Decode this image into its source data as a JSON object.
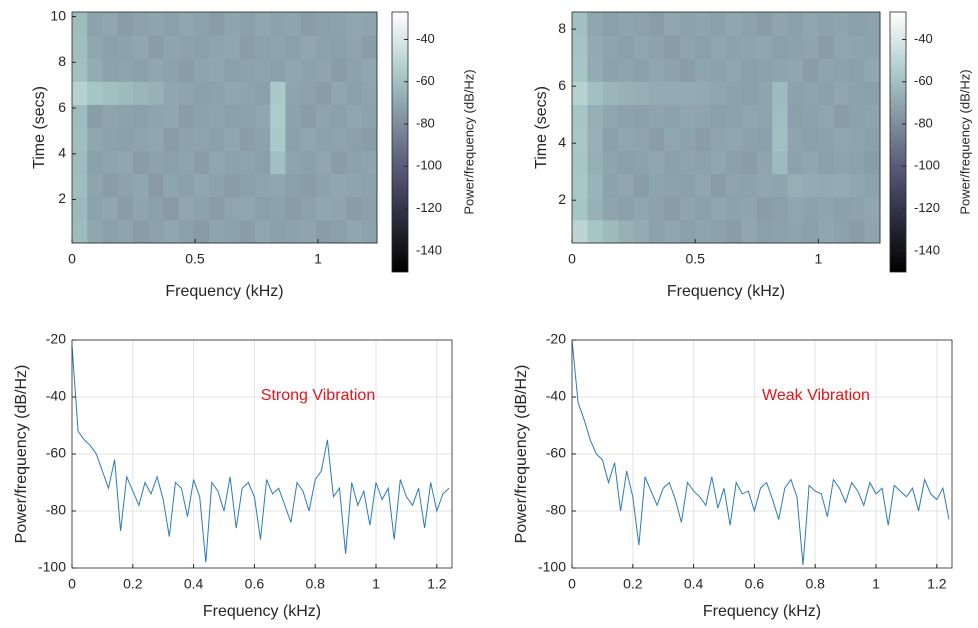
{
  "chart_data": [
    {
      "type": "heatmap",
      "xlabel": "Frequency (kHz)",
      "ylabel": "Time (secs)",
      "colorbar_label": "Power/frequency (dB/Hz)",
      "xlim": [
        0,
        1.24
      ],
      "ylim": [
        0.1,
        10.2
      ],
      "xticks": [
        0,
        0.5,
        1
      ],
      "yticks": [
        2,
        4,
        6,
        8,
        10
      ],
      "colormap": "bone",
      "clim": [
        -150,
        -27
      ],
      "cticks": [
        -140,
        -120,
        -100,
        -80,
        -60,
        -40
      ],
      "z": [
        [
          -62,
          -70,
          -73,
          -71,
          -74,
          -72,
          -70,
          -73,
          -75,
          -71,
          -72,
          -74,
          -70,
          -73,
          -72,
          -71,
          -74,
          -73,
          -70,
          -72
        ],
        [
          -63,
          -72,
          -70,
          -74,
          -71,
          -73,
          -75,
          -70,
          -72,
          -74,
          -71,
          -70,
          -73,
          -72,
          -74,
          -72,
          -70,
          -71,
          -74,
          -73
        ],
        [
          -61,
          -71,
          -74,
          -72,
          -70,
          -75,
          -71,
          -73,
          -70,
          -72,
          -74,
          -73,
          -71,
          -70,
          -73,
          -74,
          -72,
          -70,
          -71,
          -72
        ],
        [
          -62,
          -73,
          -71,
          -70,
          -74,
          -72,
          -73,
          -71,
          -74,
          -70,
          -72,
          -71,
          -73,
          -60,
          -71,
          -73,
          -70,
          -74,
          -72,
          -71
        ],
        [
          -61,
          -70,
          -72,
          -73,
          -71,
          -70,
          -74,
          -72,
          -71,
          -73,
          -70,
          -74,
          -72,
          -56,
          -73,
          -70,
          -72,
          -71,
          -73,
          -74
        ],
        [
          -62,
          -74,
          -71,
          -72,
          -73,
          -71,
          -70,
          -74,
          -72,
          -71,
          -73,
          -72,
          -70,
          -55,
          -72,
          -74,
          -71,
          -73,
          -70,
          -72
        ],
        [
          -52,
          -58,
          -60,
          -62,
          -64,
          -66,
          -70,
          -71,
          -73,
          -72,
          -70,
          -71,
          -73,
          -56,
          -71,
          -72,
          -74,
          -70,
          -73,
          -71
        ],
        [
          -60,
          -68,
          -72,
          -71,
          -73,
          -70,
          -72,
          -74,
          -71,
          -70,
          -73,
          -72,
          -71,
          -73,
          -70,
          -72,
          -71,
          -74,
          -72,
          -70
        ],
        [
          -61,
          -70,
          -73,
          -72,
          -70,
          -74,
          -71,
          -72,
          -73,
          -71,
          -70,
          -74,
          -72,
          -71,
          -73,
          -70,
          -72,
          -73,
          -71,
          -74
        ],
        [
          -62,
          -72,
          -70,
          -74,
          -72,
          -71,
          -73,
          -70,
          -72,
          -74,
          -71,
          -73,
          -70,
          -72,
          -71,
          -74,
          -73,
          -72,
          -70,
          -71
        ]
      ]
    },
    {
      "type": "heatmap",
      "xlabel": "Frequency (kHz)",
      "ylabel": "Time (secs)",
      "colorbar_label": "Power/frequency (dB/Hz)",
      "xlim": [
        0,
        1.25
      ],
      "ylim": [
        0.5,
        8.6
      ],
      "xticks": [
        0,
        0.5,
        1
      ],
      "yticks": [
        2,
        4,
        6,
        8
      ],
      "colormap": "bone",
      "clim": [
        -150,
        -27
      ],
      "cticks": [
        -140,
        -120,
        -100,
        -80,
        -60,
        -40
      ],
      "z": [
        [
          -50,
          -58,
          -62,
          -66,
          -68,
          -72,
          -70,
          -73,
          -71,
          -72,
          -74,
          -70,
          -73,
          -72,
          -71,
          -73,
          -70,
          -72,
          -74,
          -71
        ],
        [
          -58,
          -66,
          -71,
          -73,
          -70,
          -72,
          -74,
          -71,
          -73,
          -70,
          -72,
          -71,
          -74,
          -73,
          -70,
          -72,
          -71,
          -73,
          -72,
          -70
        ],
        [
          -57,
          -65,
          -72,
          -70,
          -74,
          -71,
          -72,
          -73,
          -70,
          -74,
          -71,
          -72,
          -70,
          -71,
          -67,
          -68,
          -69,
          -68,
          -70,
          -72
        ],
        [
          -58,
          -67,
          -71,
          -73,
          -72,
          -70,
          -73,
          -71,
          -72,
          -70,
          -73,
          -74,
          -71,
          -62,
          -72,
          -70,
          -73,
          -71,
          -72,
          -74
        ],
        [
          -57,
          -66,
          -73,
          -70,
          -71,
          -74,
          -70,
          -72,
          -74,
          -71,
          -70,
          -72,
          -73,
          -60,
          -71,
          -73,
          -72,
          -70,
          -71,
          -73
        ],
        [
          -58,
          -67,
          -70,
          -72,
          -73,
          -71,
          -72,
          -70,
          -71,
          -73,
          -72,
          -70,
          -71,
          -61,
          -73,
          -72,
          -70,
          -74,
          -72,
          -71
        ],
        [
          -52,
          -60,
          -64,
          -66,
          -67,
          -68,
          -68,
          -68,
          -69,
          -70,
          -72,
          -73,
          -71,
          -62,
          -72,
          -71,
          -73,
          -70,
          -72,
          -73
        ],
        [
          -58,
          -68,
          -72,
          -71,
          -73,
          -70,
          -72,
          -74,
          -71,
          -72,
          -70,
          -73,
          -72,
          -71,
          -70,
          -74,
          -71,
          -72,
          -73,
          -70
        ],
        [
          -59,
          -69,
          -71,
          -73,
          -70,
          -72,
          -74,
          -71,
          -73,
          -70,
          -72,
          -71,
          -70,
          -73,
          -72,
          -71,
          -74,
          -70,
          -71,
          -72
        ],
        [
          -60,
          -70,
          -73,
          -71,
          -72,
          -74,
          -70,
          -72,
          -71,
          -73,
          -70,
          -72,
          -74,
          -71,
          -73,
          -70,
          -72,
          -71,
          -73,
          -72
        ]
      ]
    },
    {
      "type": "line",
      "xlabel": "Frequency (kHz)",
      "ylabel": "Power/frequency (dB/Hz)",
      "annotation": "Strong Vibration",
      "annotation_color": "#e3141c",
      "color": "#2b7bb9",
      "grid": true,
      "xlim": [
        0,
        1.25
      ],
      "ylim": [
        -100,
        -20
      ],
      "xticks": [
        0,
        0.2,
        0.4,
        0.6,
        0.8,
        1,
        1.2
      ],
      "yticks": [
        -100,
        -80,
        -60,
        -40,
        -20
      ],
      "x": [
        0,
        0.02,
        0.04,
        0.06,
        0.08,
        0.1,
        0.12,
        0.14,
        0.16,
        0.18,
        0.2,
        0.22,
        0.24,
        0.26,
        0.28,
        0.3,
        0.32,
        0.34,
        0.36,
        0.38,
        0.4,
        0.42,
        0.44,
        0.46,
        0.48,
        0.5,
        0.52,
        0.54,
        0.56,
        0.58,
        0.6,
        0.62,
        0.64,
        0.66,
        0.68,
        0.7,
        0.72,
        0.74,
        0.76,
        0.78,
        0.8,
        0.82,
        0.84,
        0.86,
        0.88,
        0.9,
        0.92,
        0.94,
        0.96,
        0.98,
        1,
        1.02,
        1.04,
        1.06,
        1.08,
        1.1,
        1.12,
        1.14,
        1.16,
        1.18,
        1.2,
        1.22,
        1.24
      ],
      "values": [
        -22,
        -52,
        -55,
        -57,
        -60,
        -66,
        -72,
        -62,
        -87,
        -68,
        -73,
        -78,
        -70,
        -74,
        -68,
        -76,
        -89,
        -70,
        -72,
        -82,
        -69,
        -75,
        -98,
        -70,
        -73,
        -80,
        -68,
        -86,
        -72,
        -70,
        -75,
        -90,
        -69,
        -74,
        -72,
        -78,
        -84,
        -70,
        -73,
        -80,
        -69,
        -66,
        -55,
        -75,
        -72,
        -95,
        -70,
        -78,
        -73,
        -85,
        -70,
        -76,
        -72,
        -90,
        -69,
        -75,
        -78,
        -72,
        -86,
        -70,
        -80,
        -74,
        -72
      ]
    },
    {
      "type": "line",
      "xlabel": "Frequency (kHz)",
      "ylabel": "Power/frequency (dB/Hz)",
      "annotation": "Weak Vibration",
      "annotation_color": "#e3141c",
      "color": "#2b7bb9",
      "grid": true,
      "xlim": [
        0,
        1.25
      ],
      "ylim": [
        -100,
        -20
      ],
      "xticks": [
        0,
        0.2,
        0.4,
        0.6,
        0.8,
        1,
        1.2
      ],
      "yticks": [
        -100,
        -80,
        -60,
        -40,
        -20
      ],
      "x": [
        0,
        0.02,
        0.04,
        0.06,
        0.08,
        0.1,
        0.12,
        0.14,
        0.16,
        0.18,
        0.2,
        0.22,
        0.24,
        0.26,
        0.28,
        0.3,
        0.32,
        0.34,
        0.36,
        0.38,
        0.4,
        0.42,
        0.44,
        0.46,
        0.48,
        0.5,
        0.52,
        0.54,
        0.56,
        0.58,
        0.6,
        0.62,
        0.64,
        0.66,
        0.68,
        0.7,
        0.72,
        0.74,
        0.76,
        0.78,
        0.8,
        0.82,
        0.84,
        0.86,
        0.88,
        0.9,
        0.92,
        0.94,
        0.96,
        0.98,
        1,
        1.02,
        1.04,
        1.06,
        1.08,
        1.1,
        1.12,
        1.14,
        1.16,
        1.18,
        1.2,
        1.22,
        1.24
      ],
      "values": [
        -20,
        -42,
        -48,
        -55,
        -60,
        -62,
        -70,
        -63,
        -80,
        -66,
        -75,
        -92,
        -68,
        -73,
        -78,
        -72,
        -70,
        -76,
        -84,
        -70,
        -73,
        -75,
        -78,
        -68,
        -79,
        -72,
        -85,
        -70,
        -74,
        -73,
        -80,
        -72,
        -70,
        -76,
        -83,
        -72,
        -69,
        -75,
        -99,
        -71,
        -73,
        -74,
        -82,
        -69,
        -72,
        -77,
        -70,
        -73,
        -78,
        -70,
        -74,
        -72,
        -85,
        -71,
        -73,
        -75,
        -72,
        -80,
        -69,
        -74,
        -76,
        -72,
        -83
      ]
    }
  ]
}
